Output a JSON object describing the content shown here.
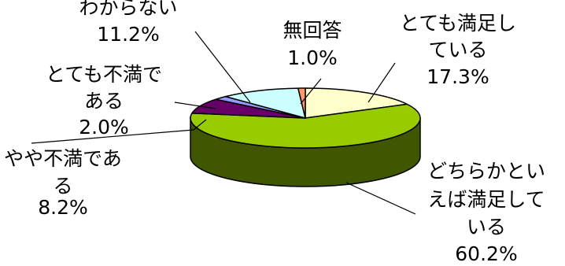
{
  "chart_data": {
    "type": "pie",
    "style": "3d",
    "slices": [
      {
        "name_lines": [
          "とても満足し",
          "ている"
        ],
        "label": "とても満足している",
        "value": 17.3,
        "value_text": "17.3%",
        "color": "#FFFFCC"
      },
      {
        "name_lines": [
          "どちらかとい",
          "えば満足して",
          "いる"
        ],
        "label": "どちらかといえば満足している",
        "value": 60.2,
        "value_text": "60.2%",
        "color": "#99CC00"
      },
      {
        "name_lines": [
          "やや不満であ",
          "る"
        ],
        "label": "やや不満である",
        "value": 8.2,
        "value_text": "8.2%",
        "color": "#660066"
      },
      {
        "name_lines": [
          "とても不満で",
          "ある"
        ],
        "label": "とても不満である",
        "value": 2.0,
        "value_text": "2.0%",
        "color": "#9999FF"
      },
      {
        "name_lines": [
          "わからない"
        ],
        "label": "わからない",
        "value": 11.2,
        "value_text": "11.2%",
        "color": "#CCFFFF"
      },
      {
        "name_lines": [
          "無回答"
        ],
        "label": "無回答",
        "value": 1.0,
        "value_text": "1.0%",
        "color": "#FF9966"
      }
    ]
  }
}
